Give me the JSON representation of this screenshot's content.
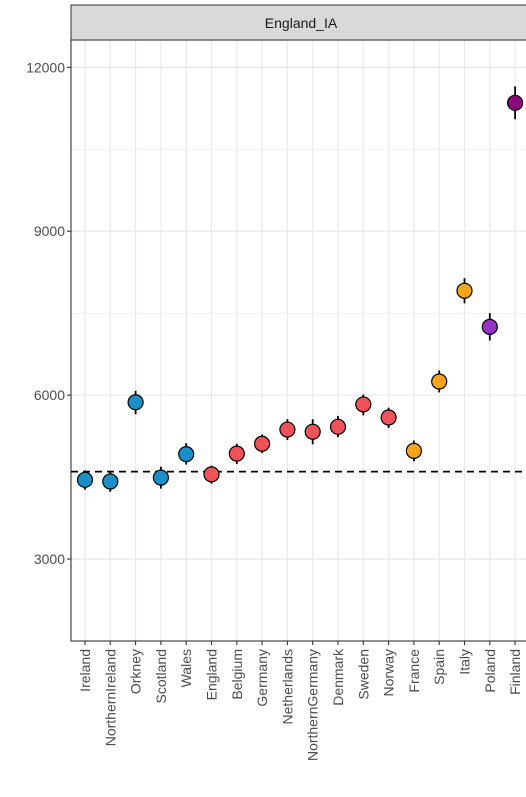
{
  "chart_data": {
    "type": "scatter",
    "facet_title": "England_IA",
    "xlabel": "",
    "ylabel": "",
    "ylim": [
      1500,
      12500
    ],
    "y_ticks": [
      3000,
      6000,
      9000,
      12000
    ],
    "y_tick_labels": [
      "3000",
      "6000",
      "9000",
      "12000"
    ],
    "reference_line": {
      "y": 4600,
      "style": "dashed"
    },
    "grid": true,
    "colors": {
      "blue": "#1a8fc8",
      "red": "#f0525a",
      "orange": "#f8a51a",
      "purple": "#9b30c8",
      "magenta": "#8b0a7a"
    },
    "categories": [
      "Ireland",
      "NorthernIreland",
      "Orkney",
      "Scotland",
      "Wales",
      "England",
      "Belgium",
      "Germany",
      "Netherlands",
      "NorthernGermany",
      "Denmark",
      "Sweden",
      "Norway",
      "France",
      "Spain",
      "Italy",
      "Poland",
      "Finland"
    ],
    "points": [
      {
        "category": "Ireland",
        "y": 4450,
        "low": 4270,
        "high": 4620,
        "color": "#1a8fc8"
      },
      {
        "category": "NorthernIreland",
        "y": 4420,
        "low": 4230,
        "high": 4600,
        "color": "#1a8fc8"
      },
      {
        "category": "Orkney",
        "y": 5870,
        "low": 5650,
        "high": 6080,
        "color": "#1a8fc8"
      },
      {
        "category": "Scotland",
        "y": 4490,
        "low": 4290,
        "high": 4690,
        "color": "#1a8fc8"
      },
      {
        "category": "Wales",
        "y": 4920,
        "low": 4730,
        "high": 5120,
        "color": "#1a8fc8"
      },
      {
        "category": "England",
        "y": 4550,
        "low": 4380,
        "high": 4710,
        "color": "#f0525a"
      },
      {
        "category": "Belgium",
        "y": 4930,
        "low": 4740,
        "high": 5110,
        "color": "#f0525a"
      },
      {
        "category": "Germany",
        "y": 5110,
        "low": 4940,
        "high": 5280,
        "color": "#f0525a"
      },
      {
        "category": "Netherlands",
        "y": 5370,
        "low": 5180,
        "high": 5560,
        "color": "#f0525a"
      },
      {
        "category": "NorthernGermany",
        "y": 5330,
        "low": 5100,
        "high": 5560,
        "color": "#f0525a"
      },
      {
        "category": "Denmark",
        "y": 5420,
        "low": 5230,
        "high": 5620,
        "color": "#f0525a"
      },
      {
        "category": "Sweden",
        "y": 5830,
        "low": 5630,
        "high": 6010,
        "color": "#f0525a"
      },
      {
        "category": "Norway",
        "y": 5590,
        "low": 5400,
        "high": 5770,
        "color": "#f0525a"
      },
      {
        "category": "France",
        "y": 4980,
        "low": 4790,
        "high": 5170,
        "color": "#f8a51a"
      },
      {
        "category": "Spain",
        "y": 6250,
        "low": 6050,
        "high": 6450,
        "color": "#f8a51a"
      },
      {
        "category": "Italy",
        "y": 7910,
        "low": 7680,
        "high": 8140,
        "color": "#f8a51a"
      },
      {
        "category": "Poland",
        "y": 7250,
        "low": 7000,
        "high": 7500,
        "color": "#9b30c8"
      },
      {
        "category": "Finland",
        "y": 11350,
        "low": 11050,
        "high": 11650,
        "color": "#8b0a7a"
      }
    ]
  }
}
